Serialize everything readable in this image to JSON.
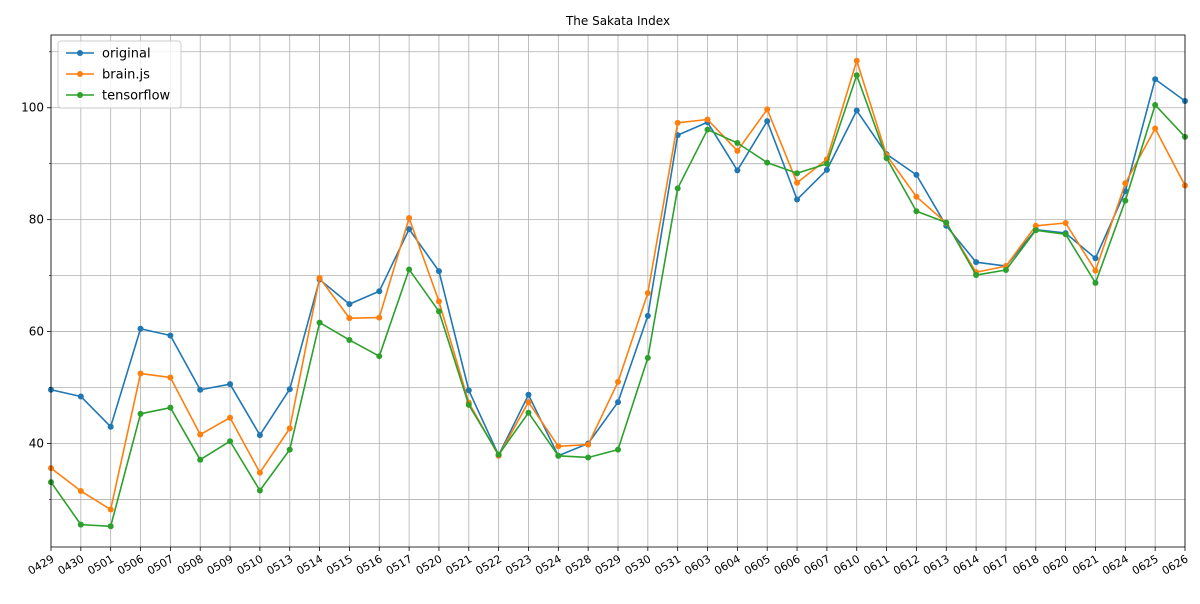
{
  "chart_data": {
    "type": "line",
    "title": "The Sakata Index",
    "xlabel": "",
    "ylabel": "",
    "categories": [
      "0429",
      "0430",
      "0501",
      "0506",
      "0507",
      "0508",
      "0509",
      "0510",
      "0513",
      "0514",
      "0515",
      "0516",
      "0517",
      "0520",
      "0521",
      "0522",
      "0523",
      "0524",
      "0528",
      "0529",
      "0530",
      "0531",
      "0603",
      "0604",
      "0605",
      "0606",
      "0607",
      "0610",
      "0611",
      "0612",
      "0613",
      "0614",
      "0617",
      "0618",
      "0620",
      "0621",
      "0624",
      "0625",
      "0626"
    ],
    "ylim": [
      21.5,
      113
    ],
    "yticks": [
      40,
      60,
      80,
      100
    ],
    "yticks_minor": [
      30,
      50,
      70,
      90,
      110
    ],
    "grid": true,
    "legend_position": "top-left",
    "series": [
      {
        "name": "original",
        "color": "#1f77b4",
        "values": [
          49.6,
          48.4,
          43.0,
          60.5,
          59.3,
          49.6,
          50.6,
          41.5,
          49.7,
          69.3,
          64.9,
          67.2,
          78.3,
          70.8,
          49.5,
          37.9,
          48.7,
          37.8,
          40.0,
          47.4,
          62.8,
          95.1,
          97.4,
          88.8,
          97.6,
          83.6,
          88.9,
          99.5,
          91.7,
          88.0,
          78.9,
          72.4,
          71.7,
          78.2,
          77.6,
          73.1,
          85.1,
          105.1,
          101.2
        ]
      },
      {
        "name": "brain.js",
        "color": "#ff7f0e",
        "values": [
          35.6,
          31.5,
          28.2,
          52.5,
          51.8,
          41.6,
          44.6,
          34.8,
          42.7,
          69.6,
          62.4,
          62.5,
          80.3,
          65.4,
          47.3,
          37.8,
          47.4,
          39.5,
          39.8,
          51.0,
          66.9,
          97.3,
          97.9,
          92.3,
          99.7,
          86.6,
          90.8,
          108.4,
          91.5,
          84.1,
          79.4,
          70.6,
          71.7,
          78.9,
          79.4,
          70.9,
          86.5,
          96.3,
          86.1
        ]
      },
      {
        "name": "tensorflow",
        "color": "#2ca02c",
        "values": [
          33.1,
          25.5,
          25.2,
          45.3,
          46.4,
          37.1,
          40.4,
          31.6,
          38.9,
          61.6,
          58.5,
          55.6,
          71.1,
          63.6,
          46.9,
          38.0,
          45.5,
          37.8,
          37.5,
          38.9,
          55.3,
          85.6,
          96.1,
          93.7,
          90.2,
          88.3,
          90.0,
          105.8,
          91.0,
          81.5,
          79.5,
          70.1,
          71.0,
          78.1,
          77.4,
          68.7,
          83.4,
          100.5,
          94.8
        ]
      }
    ]
  }
}
